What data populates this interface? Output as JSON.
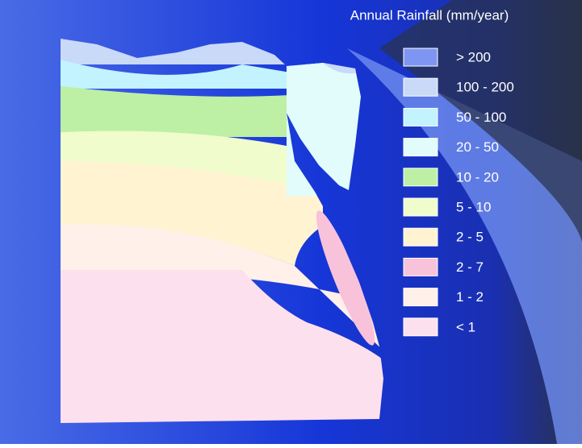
{
  "title": "Annual Rainfall (mm/year)",
  "legend": [
    {
      "label": "> 200",
      "color": "#7f95f2"
    },
    {
      "label": "100 - 200",
      "color": "#c9d9f8"
    },
    {
      "label": "50 - 100",
      "color": "#c2f3ff"
    },
    {
      "label": "20 - 50",
      "color": "#e2fcfb"
    },
    {
      "label": "10 - 20",
      "color": "#bdf0a4"
    },
    {
      "label": "5 - 10",
      "color": "#f0fccb"
    },
    {
      "label": "2 - 5",
      "color": "#fff3d2"
    },
    {
      "label": "2 - 7",
      "color": "#f8c2da"
    },
    {
      "label": "1 - 2",
      "color": "#fff0ea"
    },
    {
      "label": "< 1",
      "color": "#fde0ee"
    }
  ]
}
